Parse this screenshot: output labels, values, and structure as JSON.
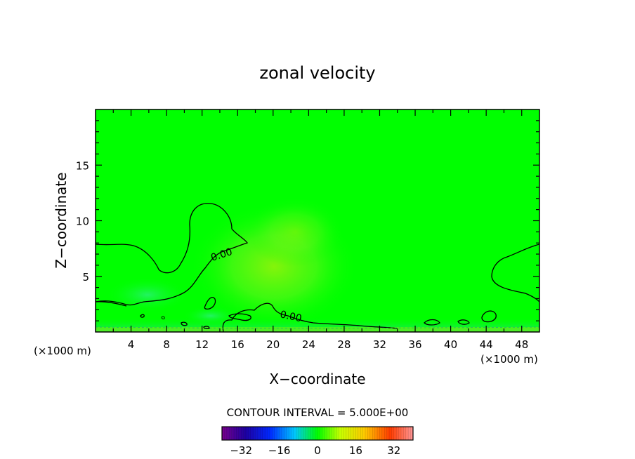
{
  "chart_data": {
    "type": "heatmap",
    "title": "zonal velocity",
    "xlabel": "X−coordinate",
    "ylabel": "Z−coordinate",
    "x_unit_label": "(×1000 m)",
    "x_unit_label_right": "(×1000 m)",
    "xlim": [
      0,
      50
    ],
    "ylim": [
      0,
      20
    ],
    "x_ticks": [
      4,
      8,
      12,
      16,
      20,
      24,
      28,
      32,
      36,
      40,
      44,
      48
    ],
    "x_tick_labels": [
      "4",
      "8",
      "12",
      "16",
      "20",
      "24",
      "28",
      "32",
      "36",
      "40",
      "44",
      "48"
    ],
    "y_ticks": [
      5,
      10,
      15
    ],
    "y_tick_labels": [
      "5",
      "10",
      "15"
    ],
    "contour_interval_text": "CONTOUR INTERVAL = 5.000E+00",
    "contour_labels": [
      "0.00",
      "0.00"
    ],
    "colorbar": {
      "min": -40,
      "max": 40,
      "tick_values": [
        -32,
        -16,
        0,
        16,
        32
      ],
      "tick_labels": [
        "−32",
        "−16",
        "0",
        "16",
        "32"
      ]
    },
    "field_description_values": {
      "background_value": 0,
      "max_positive_region_value": 3,
      "near_surface_negative_value": -3
    },
    "colors": {
      "field_zero": "#00ff00",
      "axis": "#000000",
      "contour": "#000000"
    }
  }
}
